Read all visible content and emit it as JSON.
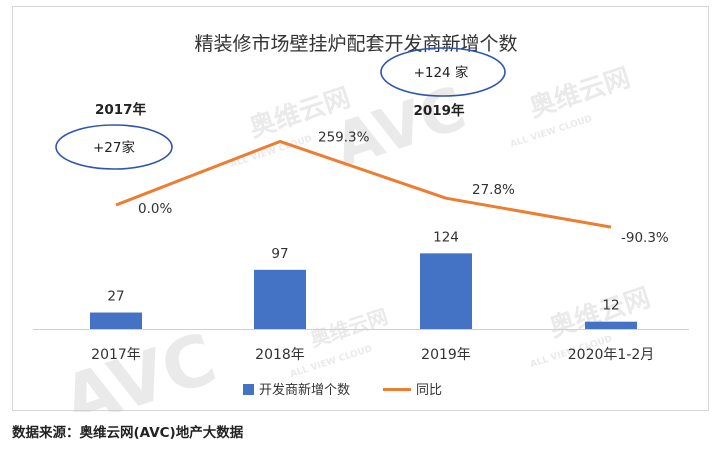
{
  "chart_data": {
    "type": "bar",
    "title": "精装修市场壁挂炉配套开发商新增个数",
    "categories": [
      "2017年",
      "2018年",
      "2019年",
      "2020年1-2月"
    ],
    "series": [
      {
        "name": "开发商新增个数",
        "type": "bar",
        "values": [
          27,
          97,
          124,
          12
        ],
        "color": "#4472C4"
      },
      {
        "name": "同比",
        "type": "line",
        "values": [
          0.0,
          259.3,
          27.8,
          -90.3
        ],
        "labels": [
          "0.0%",
          "259.3%",
          "27.8%",
          "-90.3%"
        ],
        "color": "#ED7D31"
      }
    ],
    "legend_position": "bottom",
    "grid": false,
    "annotations": [
      {
        "year": "2017年",
        "text": "+27家"
      },
      {
        "year": "2019年",
        "text": "+124 家"
      }
    ]
  },
  "watermarks": [
    "奥维云网",
    "ALL VIEW CLOUD",
    "AVC"
  ],
  "source": "数据来源：奥维云网(AVC)地产大数据"
}
